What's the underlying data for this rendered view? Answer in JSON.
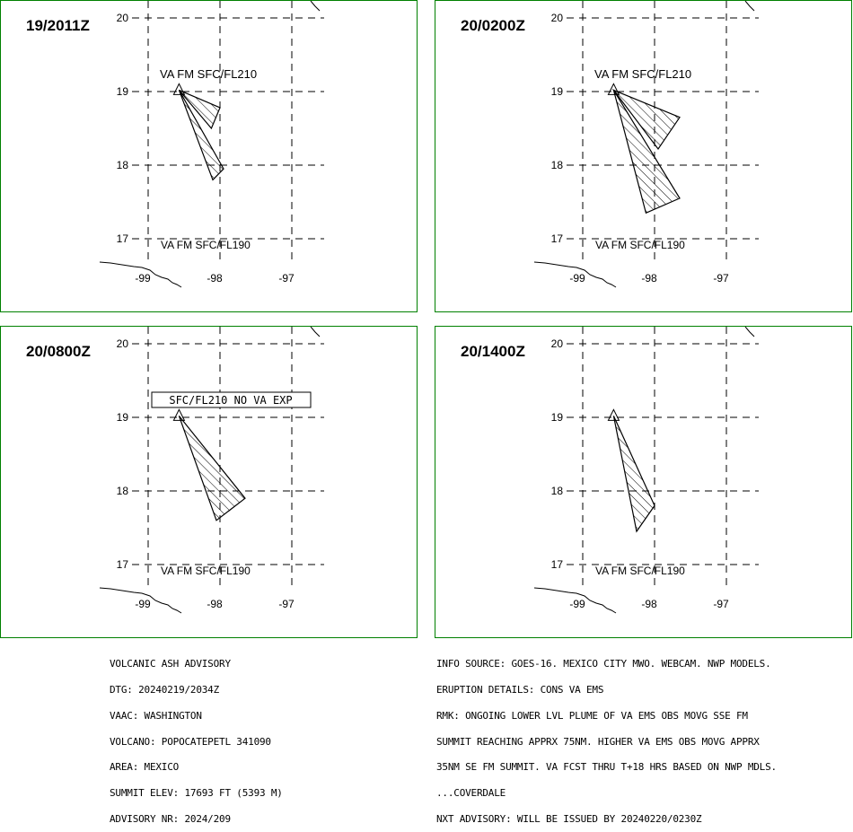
{
  "panels": [
    {
      "time": "19/2011Z",
      "label_upper": "VA FM SFC/FL210",
      "label_upper_boxed": false,
      "label_lower": "VA FM SFC/FL190",
      "lat_labels": [
        "20",
        "19",
        "18",
        "17"
      ],
      "lon_labels": [
        "-99",
        "-98",
        "-97"
      ],
      "polygons": [
        [
          [
            -98.57,
            19.02
          ],
          [
            -98.0,
            18.78
          ],
          [
            -98.12,
            18.5
          ]
        ],
        [
          [
            -98.57,
            19.02
          ],
          [
            -97.95,
            17.95
          ],
          [
            -98.1,
            17.8
          ]
        ]
      ]
    },
    {
      "time": "20/0200Z",
      "label_upper": "VA FM SFC/FL210",
      "label_upper_boxed": false,
      "label_lower": "VA FM SFC/FL190",
      "lat_labels": [
        "20",
        "19",
        "18",
        "17"
      ],
      "lon_labels": [
        "-99",
        "-98",
        "-97"
      ],
      "polygons": [
        [
          [
            -98.57,
            19.02
          ],
          [
            -97.65,
            18.65
          ],
          [
            -97.95,
            18.22
          ]
        ],
        [
          [
            -98.57,
            19.02
          ],
          [
            -97.65,
            17.55
          ],
          [
            -98.12,
            17.35
          ]
        ]
      ]
    },
    {
      "time": "20/0800Z",
      "label_upper": "SFC/FL210 NO VA EXP",
      "label_upper_boxed": true,
      "label_lower": "VA FM SFC/FL190",
      "lat_labels": [
        "20",
        "19",
        "18",
        "17"
      ],
      "lon_labels": [
        "-99",
        "-98",
        "-97"
      ],
      "polygons": [
        [
          [
            -98.57,
            19.02
          ],
          [
            -97.65,
            17.9
          ],
          [
            -98.05,
            17.6
          ]
        ]
      ]
    },
    {
      "time": "20/1400Z",
      "label_upper": "",
      "label_upper_boxed": false,
      "label_lower": "VA FM SFC/FL190",
      "lat_labels": [
        "20",
        "19",
        "18",
        "17"
      ],
      "lon_labels": [
        "-99",
        "-98",
        "-97"
      ],
      "polygons": [
        [
          [
            -98.57,
            19.02
          ],
          [
            -98.0,
            17.8
          ],
          [
            -98.25,
            17.45
          ]
        ]
      ]
    }
  ],
  "advisory_left": [
    "VOLCANIC ASH ADVISORY",
    "DTG: 20240219/2034Z",
    "VAAC: WASHINGTON",
    "VOLCANO: POPOCATEPETL 341090",
    "AREA: MEXICO",
    "SUMMIT ELEV: 17693 FT (5393 M)",
    "ADVISORY NR: 2024/209"
  ],
  "advisory_right": [
    "INFO SOURCE: GOES-16. MEXICO CITY MWO. WEBCAM. NWP MODELS.",
    "ERUPTION DETAILS: CONS VA EMS",
    "RMK: ONGOING LOWER LVL PLUME OF VA EMS OBS MOVG SSE FM",
    "SUMMIT REACHING APPRX 75NM. HIGHER VA EMS OBS MOVG APPRX",
    "35NM SE FM SUMMIT. VA FCST THRU T+18 HRS BASED ON NWP MDLS.",
    "...COVERDALE",
    "NXT ADVISORY: WILL BE ISSUED BY 20240220/0230Z"
  ]
}
